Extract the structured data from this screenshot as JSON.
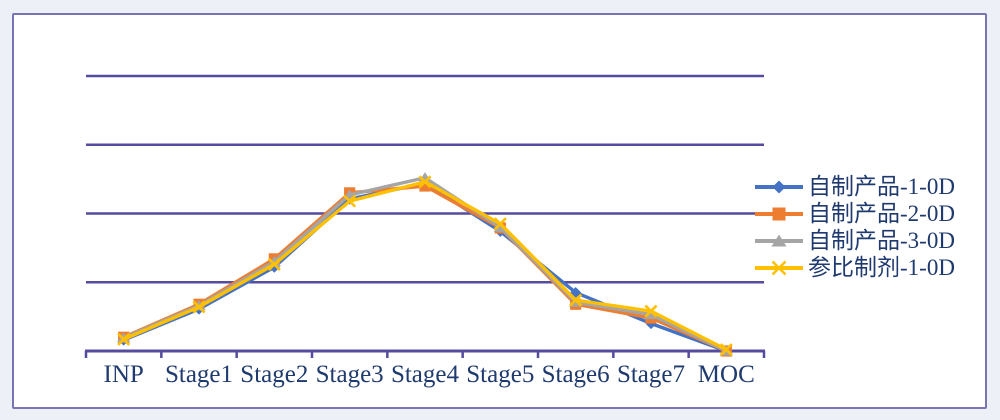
{
  "colors": {
    "page_background": "#EDF0F6",
    "plot_background": "#FFFFFF",
    "frame_border": "#7B74B2",
    "gridline": "#554B9F",
    "axis": "#554B9F",
    "text": "#1F3A6E"
  },
  "chart_data": {
    "type": "line",
    "title": "",
    "xlabel": "",
    "ylabel": "",
    "categories": [
      "INP",
      "Stage1",
      "Stage2",
      "Stage3",
      "Stage4",
      "Stage5",
      "Stage6",
      "Stage7",
      "MOC"
    ],
    "series": [
      {
        "name": "自制产品-1-0D",
        "color": "#4472C4",
        "marker": "diamond",
        "values": [
          0.16,
          0.61,
          1.22,
          2.21,
          2.44,
          1.74,
          0.85,
          0.4,
          0.0
        ]
      },
      {
        "name": "自制产品-2-0D",
        "color": "#ED7D31",
        "marker": "square",
        "values": [
          0.2,
          0.68,
          1.34,
          2.3,
          2.4,
          1.79,
          0.68,
          0.48,
          0.0
        ]
      },
      {
        "name": "自制产品-3-0D",
        "color": "#A5A5A5",
        "marker": "triangle",
        "values": [
          0.19,
          0.66,
          1.3,
          2.27,
          2.52,
          1.8,
          0.71,
          0.53,
          0.0
        ]
      },
      {
        "name": "参比制剂-1-0D",
        "color": "#FFC000",
        "marker": "x",
        "values": [
          0.17,
          0.64,
          1.26,
          2.18,
          2.46,
          1.85,
          0.74,
          0.58,
          0.02
        ]
      }
    ],
    "ylim": [
      0,
      4
    ],
    "y_gridline_step": 1,
    "y_gridline_count": 4,
    "y_axis_labels_visible": false,
    "grid": "horizontal-only",
    "legend_position": "right"
  }
}
